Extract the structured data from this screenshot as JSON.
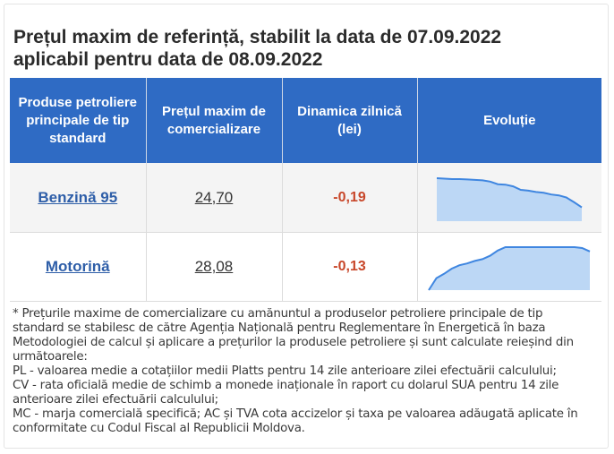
{
  "title": {
    "line1": "Prețul maxim de referință, stabilit la data de 07.09.2022",
    "line2": "aplicabil pentru data de 08.09.2022"
  },
  "table": {
    "headers": {
      "product_line1": "Produse petroliere",
      "product_line2": "principale de tip",
      "product_line3": "standard",
      "price_line1": "Prețul maxim de",
      "price_line2": "comercializare",
      "delta_line1": "Dinamica zilnică",
      "delta_line2": "(lei)",
      "trend": "Evoluție"
    },
    "rows": [
      {
        "product": "Benzină 95",
        "price": "24,70",
        "delta": "-0,19",
        "trend": [
          1.0,
          0.99,
          0.98,
          0.98,
          0.97,
          0.96,
          0.95,
          0.92,
          0.86,
          0.85,
          0.81,
          0.73,
          0.71,
          0.68,
          0.66,
          0.62,
          0.6,
          0.55,
          0.44,
          0.32
        ]
      },
      {
        "product": "Motorină",
        "price": "28,08",
        "delta": "-0,13",
        "trend": [
          0.0,
          0.28,
          0.38,
          0.5,
          0.58,
          0.62,
          0.68,
          0.72,
          0.8,
          0.92,
          1.0,
          1.0,
          1.0,
          1.0,
          1.0,
          1.0,
          1.0,
          1.0,
          1.0,
          1.0,
          0.98,
          0.9
        ]
      }
    ]
  },
  "note": {
    "lines": [
      "* Prețurile maxime de comercializare cu amănuntul a produselor petroliere principale de tip",
      "standard se stabilesc de către Agenția Națională pentru Reglementare în Energetică în baza",
      "Metodologiei de calcul și aplicare a prețurilor la produsele petroliere și sunt calculate reieșind din",
      "următoarele:",
      "PL - valoarea medie a cotațiilor medii Platts pentru 14 zile anterioare zilei efectuării calculului;",
      "CV - rata oficială medie de schimb a monede inaționale în raport cu dolarul SUA pentru 14 zile",
      "anterioare zilei efectuării calculului;",
      "MC - marja comercială specifică; AC și TVA cota accizelor și taxa pe valoarea adăugată aplicate în",
      "conformitate cu Codul Fiscal al Republicii Moldova."
    ]
  },
  "colors": {
    "header_bg": "#2f6bc4",
    "link": "#2e5ea8",
    "delta_negative": "#c8472a",
    "spark_line": "#3f86e0",
    "spark_fill": "#bcd7f5"
  }
}
